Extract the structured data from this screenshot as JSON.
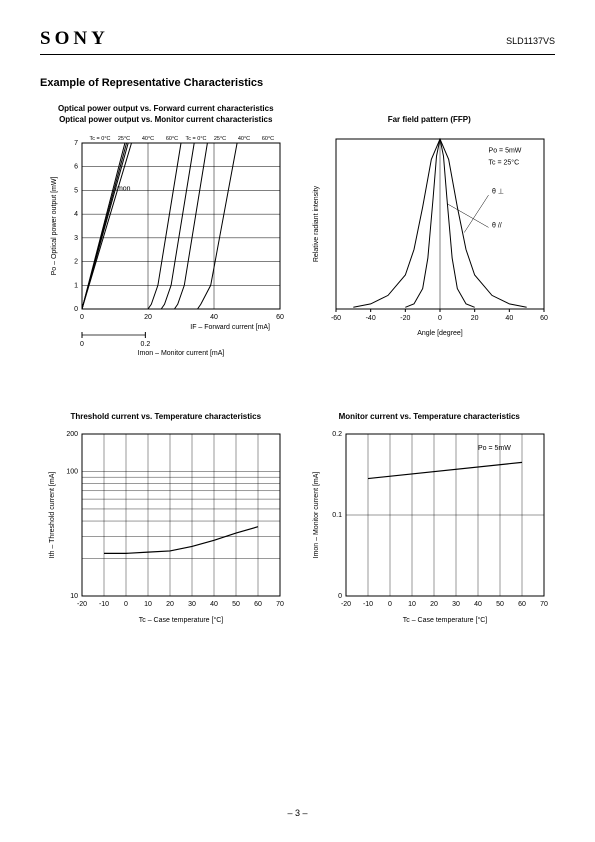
{
  "header": {
    "brand": "SONY",
    "part_number": "SLD1137VS"
  },
  "section_title": "Example of Representative Characteristics",
  "page_number": "– 3 –",
  "chart_a": {
    "type": "line",
    "title_line1": "Optical power output vs. Forward current characteristics",
    "title_line2": "Optical power output vs. Monitor current characteristics",
    "ylabel": "Po – Optical power output [mW]",
    "xlabel": "IF – Forward current [mA]",
    "xlabel2": "Imon – Monitor current [mA]",
    "label_fontsize": 7,
    "imon_label": "Imon",
    "temp_labels_left": [
      "Tc = 0°C",
      "25°C",
      "40°C",
      "60°C"
    ],
    "temp_labels_right": [
      "Tc = 0°C",
      "25°C",
      "40°C",
      "60°C"
    ],
    "xlim": [
      0,
      60
    ],
    "xtick_step": 20,
    "xlim2": [
      0,
      0.2
    ],
    "xtick2_step": 0.2,
    "ylim": [
      0,
      7
    ],
    "ytick_step": 1,
    "background": "#ffffff",
    "line_color": "#000000",
    "grid_color": "#000000",
    "imon_lines": [
      [
        [
          0,
          0
        ],
        [
          13,
          7
        ]
      ],
      [
        [
          0,
          0
        ],
        [
          13.5,
          7
        ]
      ],
      [
        [
          0,
          0
        ],
        [
          14,
          7
        ]
      ],
      [
        [
          0,
          0
        ],
        [
          15,
          7
        ]
      ]
    ],
    "if_lines": [
      [
        [
          20,
          0
        ],
        [
          21,
          0.2
        ],
        [
          23,
          1
        ],
        [
          30,
          7
        ]
      ],
      [
        [
          24,
          0
        ],
        [
          25,
          0.2
        ],
        [
          27,
          1
        ],
        [
          34,
          7
        ]
      ],
      [
        [
          28,
          0
        ],
        [
          29,
          0.2
        ],
        [
          31,
          1
        ],
        [
          38,
          7
        ]
      ],
      [
        [
          35,
          0
        ],
        [
          36,
          0.2
        ],
        [
          39,
          1
        ],
        [
          47,
          7
        ]
      ]
    ]
  },
  "chart_b": {
    "type": "line",
    "title": "Far field pattern (FFP)",
    "ylabel": "Relative radiant intensity",
    "xlabel": "Angle [degree]",
    "label_fontsize": 7,
    "annot1": "Po = 5mW",
    "annot2": "Tc = 25°C",
    "annot3": "θ ⊥",
    "annot4": "θ //",
    "xlim": [
      -60,
      60
    ],
    "xtick_step": 20,
    "ylim": [
      0,
      1
    ],
    "background": "#ffffff",
    "line_color": "#000000",
    "curve_wide": [
      [
        -50,
        0.01
      ],
      [
        -40,
        0.03
      ],
      [
        -30,
        0.08
      ],
      [
        -20,
        0.2
      ],
      [
        -15,
        0.35
      ],
      [
        -10,
        0.6
      ],
      [
        -5,
        0.88
      ],
      [
        0,
        1
      ],
      [
        5,
        0.88
      ],
      [
        10,
        0.6
      ],
      [
        15,
        0.35
      ],
      [
        20,
        0.2
      ],
      [
        30,
        0.08
      ],
      [
        40,
        0.03
      ],
      [
        50,
        0.01
      ]
    ],
    "curve_narrow": [
      [
        -20,
        0.01
      ],
      [
        -15,
        0.03
      ],
      [
        -10,
        0.12
      ],
      [
        -7,
        0.3
      ],
      [
        -4,
        0.65
      ],
      [
        -2,
        0.9
      ],
      [
        0,
        1
      ],
      [
        2,
        0.9
      ],
      [
        4,
        0.65
      ],
      [
        7,
        0.3
      ],
      [
        10,
        0.12
      ],
      [
        15,
        0.03
      ],
      [
        20,
        0.01
      ]
    ]
  },
  "chart_c": {
    "type": "line",
    "title": "Threshold current vs. Temperature characteristics",
    "ylabel": "Ith – Threshold current [mA]",
    "xlabel": "Tc – Case temperature [°C]",
    "label_fontsize": 7,
    "xlim": [
      -20,
      70
    ],
    "xtick_step": 10,
    "ylim": [
      10,
      200
    ],
    "yscale": "log",
    "background": "#ffffff",
    "line_color": "#000000",
    "grid_color": "#000000",
    "points": [
      [
        -10,
        22
      ],
      [
        0,
        22
      ],
      [
        10,
        22.5
      ],
      [
        20,
        23
      ],
      [
        30,
        25
      ],
      [
        40,
        28
      ],
      [
        50,
        32
      ],
      [
        60,
        36
      ]
    ]
  },
  "chart_d": {
    "type": "line",
    "title": "Monitor current vs. Temperature characteristics",
    "ylabel": "Imon – Monitor current [mA]",
    "xlabel": "Tc – Case temperature [°C]",
    "label_fontsize": 7,
    "annot1": "Po = 5mW",
    "xlim": [
      -20,
      70
    ],
    "xtick_step": 10,
    "ylim": [
      0,
      0.2
    ],
    "ytick_step": 0.1,
    "background": "#ffffff",
    "line_color": "#000000",
    "grid_color": "#000000",
    "points": [
      [
        -10,
        0.145
      ],
      [
        60,
        0.165
      ]
    ]
  }
}
